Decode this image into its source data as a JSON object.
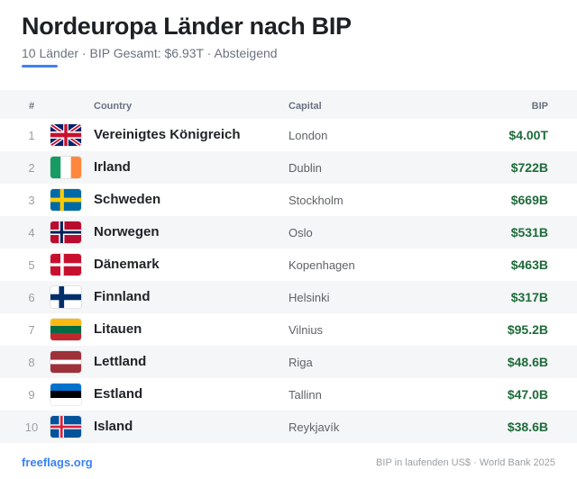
{
  "header": {
    "title": "Nordeuropa Länder nach BIP",
    "subtitle": "10 Länder · BIP Gesamt: $6.93T · Absteigend"
  },
  "table": {
    "columns": {
      "rank": "#",
      "country": "Country",
      "capital": "Capital",
      "gdp": "BIP"
    },
    "rows": [
      {
        "rank": "1",
        "country": "Vereinigtes Königreich",
        "capital": "London",
        "gdp": "$4.00T",
        "flag": "uk-flag-icon"
      },
      {
        "rank": "2",
        "country": "Irland",
        "capital": "Dublin",
        "gdp": "$722B",
        "flag": "ireland-flag-icon"
      },
      {
        "rank": "3",
        "country": "Schweden",
        "capital": "Stockholm",
        "gdp": "$669B",
        "flag": "sweden-flag-icon"
      },
      {
        "rank": "4",
        "country": "Norwegen",
        "capital": "Oslo",
        "gdp": "$531B",
        "flag": "norway-flag-icon"
      },
      {
        "rank": "5",
        "country": "Dänemark",
        "capital": "Kopenhagen",
        "gdp": "$463B",
        "flag": "denmark-flag-icon"
      },
      {
        "rank": "6",
        "country": "Finnland",
        "capital": "Helsinki",
        "gdp": "$317B",
        "flag": "finland-flag-icon"
      },
      {
        "rank": "7",
        "country": "Litauen",
        "capital": "Vilnius",
        "gdp": "$95.2B",
        "flag": "lithuania-flag-icon"
      },
      {
        "rank": "8",
        "country": "Lettland",
        "capital": "Riga",
        "gdp": "$48.6B",
        "flag": "latvia-flag-icon"
      },
      {
        "rank": "9",
        "country": "Estland",
        "capital": "Tallinn",
        "gdp": "$47.0B",
        "flag": "estonia-flag-icon"
      },
      {
        "rank": "10",
        "country": "Island",
        "capital": "Reykjavík",
        "gdp": "$38.6B",
        "flag": "iceland-flag-icon"
      }
    ]
  },
  "footer": {
    "brand": "freeflags.org",
    "source": "BIP in laufenden US$ · World Bank 2025"
  },
  "colors": {
    "accent": "#3b82f6",
    "gdp_text": "#1e6b3a",
    "stripe": "#f4f6f8"
  }
}
